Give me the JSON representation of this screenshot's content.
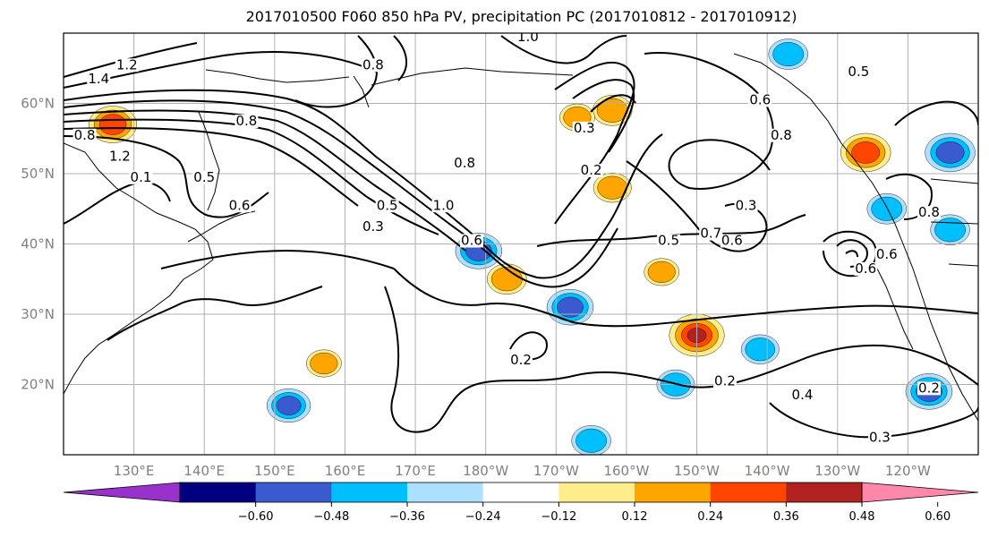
{
  "chart_data": {
    "type": "heatmap",
    "title": "2017010500 F060 850 hPa PV, precipitation PC (2017010812 - 2017010912)",
    "map": {
      "projection": "PlateCarree",
      "lon_range": [
        120,
        250
      ],
      "lat_range": [
        10,
        70
      ],
      "grid": true,
      "lat_ticks": [
        {
          "value": 60,
          "label": "60°N"
        },
        {
          "value": 50,
          "label": "50°N"
        },
        {
          "value": 40,
          "label": "40°N"
        },
        {
          "value": 30,
          "label": "30°N"
        },
        {
          "value": 20,
          "label": "20°N"
        }
      ],
      "lon_ticks": [
        {
          "value": 130,
          "label": "130°E"
        },
        {
          "value": 140,
          "label": "140°E"
        },
        {
          "value": 150,
          "label": "150°E"
        },
        {
          "value": 160,
          "label": "160°E"
        },
        {
          "value": 170,
          "label": "170°E"
        },
        {
          "value": 180,
          "label": "180°W"
        },
        {
          "value": 190,
          "label": "170°W"
        },
        {
          "value": 200,
          "label": "160°W"
        },
        {
          "value": 210,
          "label": "150°W"
        },
        {
          "value": 220,
          "label": "140°W"
        },
        {
          "value": 230,
          "label": "130°W"
        },
        {
          "value": 240,
          "label": "120°W"
        }
      ]
    },
    "colorbar": {
      "colors": [
        "#9932CC",
        "#000080",
        "#3A5BCF",
        "#00BFFF",
        "#ADDFFF",
        "#FFFFFF",
        "#FFEC8B",
        "#FFA500",
        "#FF4500",
        "#B22222",
        "#FF88AA"
      ],
      "ticks": [
        {
          "value": -0.6,
          "label": "−0.60"
        },
        {
          "value": -0.48,
          "label": "−0.48"
        },
        {
          "value": -0.36,
          "label": "−0.36"
        },
        {
          "value": -0.24,
          "label": "−0.24"
        },
        {
          "value": -0.12,
          "label": "−0.12"
        },
        {
          "value": 0.12,
          "label": "0.12"
        },
        {
          "value": 0.24,
          "label": "0.24"
        },
        {
          "value": 0.36,
          "label": "0.36"
        },
        {
          "value": 0.48,
          "label": "0.48"
        },
        {
          "value": 0.6,
          "label": "0.60"
        }
      ],
      "extend": "both"
    },
    "pv_contour_labels": [
      {
        "lon": 125,
        "lat": 63,
        "label": "1.4"
      },
      {
        "lon": 129,
        "lat": 65,
        "label": "1.2"
      },
      {
        "lon": 123,
        "lat": 55,
        "label": "0.8"
      },
      {
        "lon": 128,
        "lat": 52,
        "label": "1.2"
      },
      {
        "lon": 131,
        "lat": 49,
        "label": "0.1"
      },
      {
        "lon": 140,
        "lat": 49,
        "label": "0.5"
      },
      {
        "lon": 145,
        "lat": 45,
        "label": "0.6"
      },
      {
        "lon": 146,
        "lat": 57,
        "label": "0.8"
      },
      {
        "lon": 164,
        "lat": 65,
        "label": "0.8"
      },
      {
        "lon": 166,
        "lat": 45,
        "label": "0.5"
      },
      {
        "lon": 164,
        "lat": 42,
        "label": "0.3"
      },
      {
        "lon": 174,
        "lat": 45,
        "label": "1.0"
      },
      {
        "lon": 178,
        "lat": 40,
        "label": "0.6"
      },
      {
        "lon": 177,
        "lat": 51,
        "label": "0.8"
      },
      {
        "lon": 186,
        "lat": 69,
        "label": "1.0"
      },
      {
        "lon": 194,
        "lat": 56,
        "label": "0.3"
      },
      {
        "lon": 195,
        "lat": 50,
        "label": "0.2"
      },
      {
        "lon": 206,
        "lat": 40,
        "label": "0.5"
      },
      {
        "lon": 212,
        "lat": 41,
        "label": "0.7"
      },
      {
        "lon": 215,
        "lat": 40,
        "label": "0.6"
      },
      {
        "lon": 217,
        "lat": 45,
        "label": "0.3"
      },
      {
        "lon": 219,
        "lat": 60,
        "label": "0.6"
      },
      {
        "lon": 222,
        "lat": 55,
        "label": "0.8"
      },
      {
        "lon": 233,
        "lat": 64,
        "label": "0.5"
      },
      {
        "lon": 234,
        "lat": 36,
        "label": "0.6"
      },
      {
        "lon": 237,
        "lat": 38,
        "label": "0.6"
      },
      {
        "lon": 243,
        "lat": 44,
        "label": "0.8"
      },
      {
        "lon": 185,
        "lat": 23,
        "label": "0.2"
      },
      {
        "lon": 214,
        "lat": 20,
        "label": "0.2"
      },
      {
        "lon": 225,
        "lat": 18,
        "label": "0.4"
      },
      {
        "lon": 243,
        "lat": 19,
        "label": "0.2"
      },
      {
        "lon": 236,
        "lat": 12,
        "label": "0.3"
      }
    ],
    "precip_pc_blobs": [
      {
        "lon": 127,
        "lat": 57,
        "value": 0.42
      },
      {
        "lon": 179,
        "lat": 39,
        "value": -0.4
      },
      {
        "lon": 183,
        "lat": 35,
        "value": 0.3
      },
      {
        "lon": 192,
        "lat": 31,
        "value": -0.4
      },
      {
        "lon": 198,
        "lat": 59,
        "value": 0.3
      },
      {
        "lon": 210,
        "lat": 27,
        "value": 0.52
      },
      {
        "lon": 219,
        "lat": 25,
        "value": -0.28
      },
      {
        "lon": 234,
        "lat": 53,
        "value": 0.45
      },
      {
        "lon": 246,
        "lat": 53,
        "value": -0.45
      },
      {
        "lon": 237,
        "lat": 45,
        "value": -0.3
      },
      {
        "lon": 243,
        "lat": 19,
        "value": -0.4
      },
      {
        "lon": 152,
        "lat": 17,
        "value": -0.36
      },
      {
        "lon": 207,
        "lat": 20,
        "value": -0.28
      },
      {
        "lon": 195,
        "lat": 12,
        "value": -0.3
      },
      {
        "lon": 246,
        "lat": 42,
        "value": -0.3
      },
      {
        "lon": 157,
        "lat": 23,
        "value": 0.24
      },
      {
        "lon": 223,
        "lat": 67,
        "value": -0.3
      },
      {
        "lon": 198,
        "lat": 48,
        "value": 0.28
      },
      {
        "lon": 205,
        "lat": 36,
        "value": 0.24
      },
      {
        "lon": 193,
        "lat": 58,
        "value": 0.24
      }
    ]
  }
}
